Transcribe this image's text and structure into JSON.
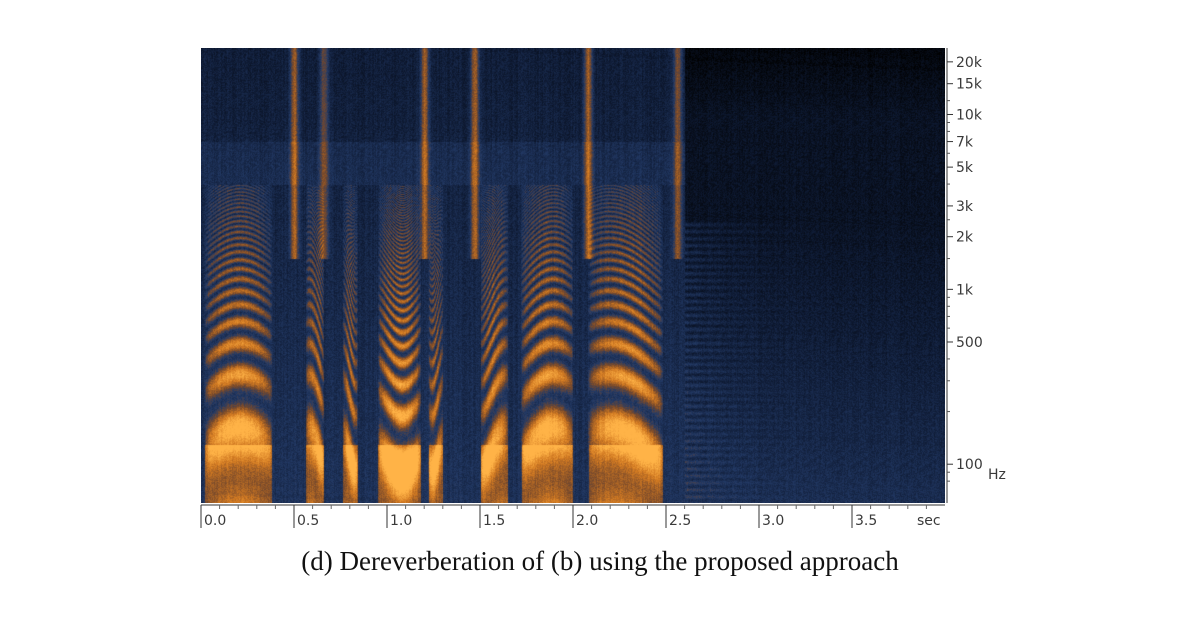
{
  "caption": "(d) Dereverberation of (b) using the proposed approach",
  "chart_data": {
    "type": "heatmap",
    "title": "",
    "xlabel": "sec",
    "ylabel": "Hz",
    "xlim": [
      0.0,
      4.0
    ],
    "yscale": "log",
    "ylim": [
      60,
      24000
    ],
    "x_ticks": [
      {
        "value": 0.0,
        "label": "0.0"
      },
      {
        "value": 0.5,
        "label": "0.5"
      },
      {
        "value": 1.0,
        "label": "1.0"
      },
      {
        "value": 1.5,
        "label": "1.5"
      },
      {
        "value": 2.0,
        "label": "2.0"
      },
      {
        "value": 2.5,
        "label": "2.5"
      },
      {
        "value": 3.0,
        "label": "3.0"
      },
      {
        "value": 3.5,
        "label": "3.5"
      }
    ],
    "x_unit_label": "sec",
    "y_ticks": [
      {
        "value": 20000,
        "label": "20k"
      },
      {
        "value": 15000,
        "label": "15k"
      },
      {
        "value": 10000,
        "label": "10k"
      },
      {
        "value": 7000,
        "label": "7k"
      },
      {
        "value": 5000,
        "label": "5k"
      },
      {
        "value": 3000,
        "label": "3k"
      },
      {
        "value": 2000,
        "label": "2k"
      },
      {
        "value": 1000,
        "label": "1k"
      },
      {
        "value": 500,
        "label": "500"
      },
      {
        "value": 100,
        "label": "100"
      }
    ],
    "y_unit_label": "Hz",
    "colormap": [
      "#000000",
      "#0e1a33",
      "#233a66",
      "#7a4a2a",
      "#d27a22",
      "#ffb347"
    ],
    "speech_end_sec": 2.6,
    "voiced_segments": [
      {
        "start": 0.02,
        "end": 0.38,
        "energy": 1.0
      },
      {
        "start": 0.56,
        "end": 0.66,
        "energy": 0.8
      },
      {
        "start": 0.76,
        "end": 0.84,
        "energy": 0.75
      },
      {
        "start": 0.95,
        "end": 1.18,
        "energy": 1.0
      },
      {
        "start": 1.22,
        "end": 1.3,
        "energy": 0.7
      },
      {
        "start": 1.5,
        "end": 1.65,
        "energy": 0.85
      },
      {
        "start": 1.72,
        "end": 2.0,
        "energy": 1.0
      },
      {
        "start": 2.08,
        "end": 2.48,
        "energy": 1.0
      }
    ],
    "fricative_bursts": [
      {
        "time": 0.5,
        "energy": 0.8
      },
      {
        "time": 0.66,
        "energy": 0.6
      },
      {
        "time": 1.2,
        "energy": 0.8
      },
      {
        "time": 1.47,
        "energy": 0.85
      },
      {
        "time": 2.08,
        "energy": 0.85
      },
      {
        "time": 2.56,
        "energy": 0.7
      }
    ]
  }
}
